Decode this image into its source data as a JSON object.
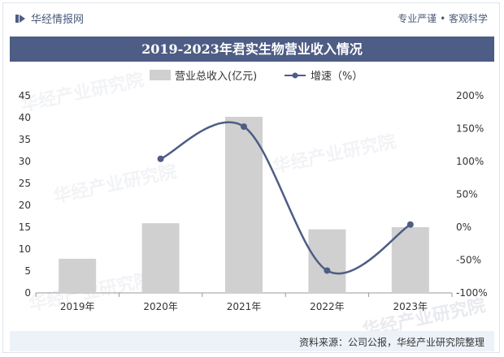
{
  "header": {
    "brand": "华经情报网",
    "tagline": "专业严谨 • 客观科学"
  },
  "footer": {
    "source": "资料来源：公司公报，华经产业研究院整理"
  },
  "watermark": {
    "text": "华经产业研究院"
  },
  "colors": {
    "bar": "#d0d0d0",
    "line": "#4e5d85",
    "title_bg": "#4e5d85",
    "footer_bg": "#edf1f8"
  },
  "chart_data": {
    "type": "bar",
    "title": "2019-2023年君实生物营业收入情况",
    "categories": [
      "2019年",
      "2020年",
      "2021年",
      "2022年",
      "2023年"
    ],
    "series": [
      {
        "name": "营业总收入(亿元)",
        "type": "bar",
        "axis": "left",
        "values": [
          7.8,
          15.9,
          40.2,
          14.5,
          15.0
        ]
      },
      {
        "name": "增速（%）",
        "type": "line",
        "axis": "right",
        "values": [
          null,
          104,
          153,
          -66,
          4
        ],
        "smooth": true
      }
    ],
    "ylim": [
      0,
      45
    ],
    "y_ticks": [
      0,
      5,
      10,
      15,
      20,
      25,
      30,
      35,
      40,
      45
    ],
    "y2lim": [
      -100,
      200
    ],
    "y2_ticks": [
      "-100%",
      "-50%",
      "0%",
      "50%",
      "100%",
      "150%",
      "200%"
    ],
    "grid": false,
    "legend": "top-center"
  }
}
